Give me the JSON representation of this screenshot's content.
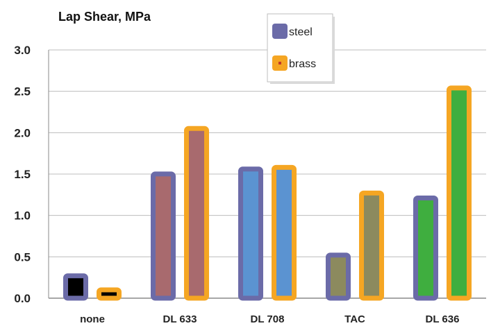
{
  "chart_data": {
    "type": "bar",
    "title": "Lap Shear, MPa",
    "xlabel": "",
    "ylabel": "",
    "ylim": [
      0,
      3.0
    ],
    "yticks": [
      "0.0",
      "0.5",
      "1.0",
      "1.5",
      "2.0",
      "2.5",
      "3.0"
    ],
    "grid": true,
    "legend_position": "top-center",
    "categories": [
      "none",
      "DL 633",
      "DL 708",
      "TAC",
      "DL 636"
    ],
    "series": [
      {
        "name": "steel",
        "values": [
          0.3,
          1.53,
          1.59,
          0.55,
          1.24
        ],
        "border_color": "#6b6ba8"
      },
      {
        "name": "brass",
        "values": [
          0.13,
          2.08,
          1.61,
          1.3,
          2.57
        ],
        "border_color": "#f5a623"
      }
    ],
    "bar_fill_colors": [
      "#000000",
      "#a86a6e",
      "#5b93d1",
      "#8c8a5e",
      "#3fae3f"
    ],
    "legend_swatch_colors": {
      "steel": "#6b6ba8",
      "brass": "#f5a623"
    }
  }
}
